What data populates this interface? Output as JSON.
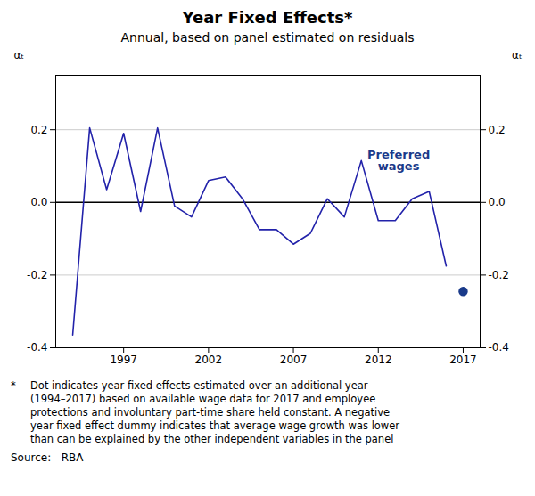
{
  "chart_data": {
    "type": "line",
    "title": "Year Fixed Effects*",
    "subtitle": "Annual, based on panel estimated on residuals",
    "ylabel": "αₜ",
    "y2label": "αₜ",
    "x": [
      1994,
      1995,
      1996,
      1997,
      1998,
      1999,
      2000,
      2001,
      2002,
      2003,
      2004,
      2005,
      2006,
      2007,
      2008,
      2009,
      2010,
      2011,
      2012,
      2013,
      2014,
      2015,
      2016,
      2017
    ],
    "series": [
      {
        "type": "line",
        "color": "#2222aa",
        "line_style": "solid",
        "values": [
          -0.365,
          0.205,
          0.035,
          0.19,
          -0.025,
          0.205,
          -0.01,
          -0.04,
          0.06,
          0.07,
          0.01,
          -0.075,
          -0.075,
          -0.115,
          -0.085,
          0.01,
          -0.04,
          0.115,
          -0.05,
          -0.05,
          0.01,
          0.03,
          -0.175,
          null
        ]
      },
      {
        "type": "scatter",
        "color": "#1a3a8a",
        "marker": "circle",
        "values": [
          null,
          null,
          null,
          null,
          null,
          null,
          null,
          null,
          null,
          null,
          null,
          null,
          null,
          null,
          null,
          null,
          null,
          null,
          null,
          null,
          null,
          null,
          null,
          -0.245
        ]
      }
    ],
    "xlim": [
      1993.0,
      2018.0
    ],
    "xticks": [
      1997,
      2002,
      2007,
      2012,
      2017
    ],
    "ylim": [
      -0.4,
      0.35
    ],
    "yticks": [
      -0.4,
      -0.2,
      {
        "value": 0.0,
        "label": "0.0"
      },
      0.2
    ],
    "y2lim": [
      -0.4,
      0.35
    ],
    "y2ticks": [
      -0.4,
      -0.2,
      {
        "value": 0.0,
        "label": "0.0"
      },
      0.2
    ],
    "grid": true,
    "annotations": [
      {
        "text": "Preferred\nwages",
        "x": 2013.2,
        "y": 0.115,
        "color": "#1a3a8a"
      }
    ],
    "footnote": {
      "marker": "*",
      "text": "Dot indicates year fixed effects estimated over an additional year\n(1994–2017) based on available wage data for 2017 and employee\nprotections and involuntary part-time share held constant. A negative\nyear fixed effect dummy indicates that average wage growth was lower\nthan can be explained by the other independent variables in the panel"
    },
    "source": "Source:   RBA"
  }
}
